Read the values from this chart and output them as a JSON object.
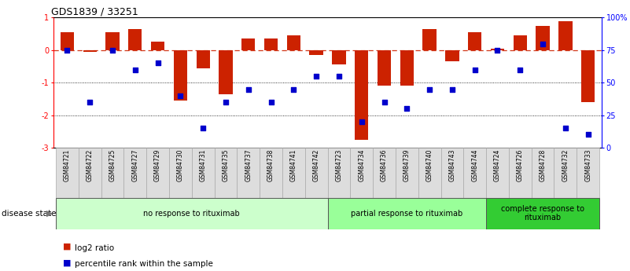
{
  "title": "GDS1839 / 33251",
  "samples": [
    "GSM84721",
    "GSM84722",
    "GSM84725",
    "GSM84727",
    "GSM84729",
    "GSM84730",
    "GSM84731",
    "GSM84735",
    "GSM84737",
    "GSM84738",
    "GSM84741",
    "GSM84742",
    "GSM84723",
    "GSM84734",
    "GSM84736",
    "GSM84739",
    "GSM84740",
    "GSM84743",
    "GSM84744",
    "GSM84724",
    "GSM84726",
    "GSM84728",
    "GSM84732",
    "GSM84733"
  ],
  "log2_ratio": [
    0.55,
    -0.05,
    0.55,
    0.65,
    0.25,
    -1.55,
    -0.55,
    -1.35,
    0.35,
    0.35,
    0.45,
    -0.15,
    -0.45,
    -2.75,
    -1.1,
    -1.1,
    0.65,
    -0.35,
    0.55,
    0.05,
    0.45,
    0.75,
    0.9,
    -1.6
  ],
  "percentile": [
    75,
    35,
    75,
    60,
    65,
    40,
    15,
    35,
    45,
    35,
    45,
    55,
    55,
    20,
    35,
    30,
    45,
    45,
    60,
    75,
    60,
    80,
    15,
    10
  ],
  "groups": [
    {
      "label": "no response to rituximab",
      "start": 0,
      "end": 12,
      "color": "#ccffcc"
    },
    {
      "label": "partial response to rituximab",
      "start": 12,
      "end": 19,
      "color": "#99ff99"
    },
    {
      "label": "complete response to\nrituximab",
      "start": 19,
      "end": 24,
      "color": "#33cc33"
    }
  ],
  "bar_color": "#cc2200",
  "dot_color": "#0000cc",
  "dashed_line_color": "#cc2200",
  "background_color": "#ffffff",
  "label_log2": "log2 ratio",
  "label_percentile": "percentile rank within the sample",
  "disease_state_label": "disease state",
  "fig_width": 8.01,
  "fig_height": 3.45
}
